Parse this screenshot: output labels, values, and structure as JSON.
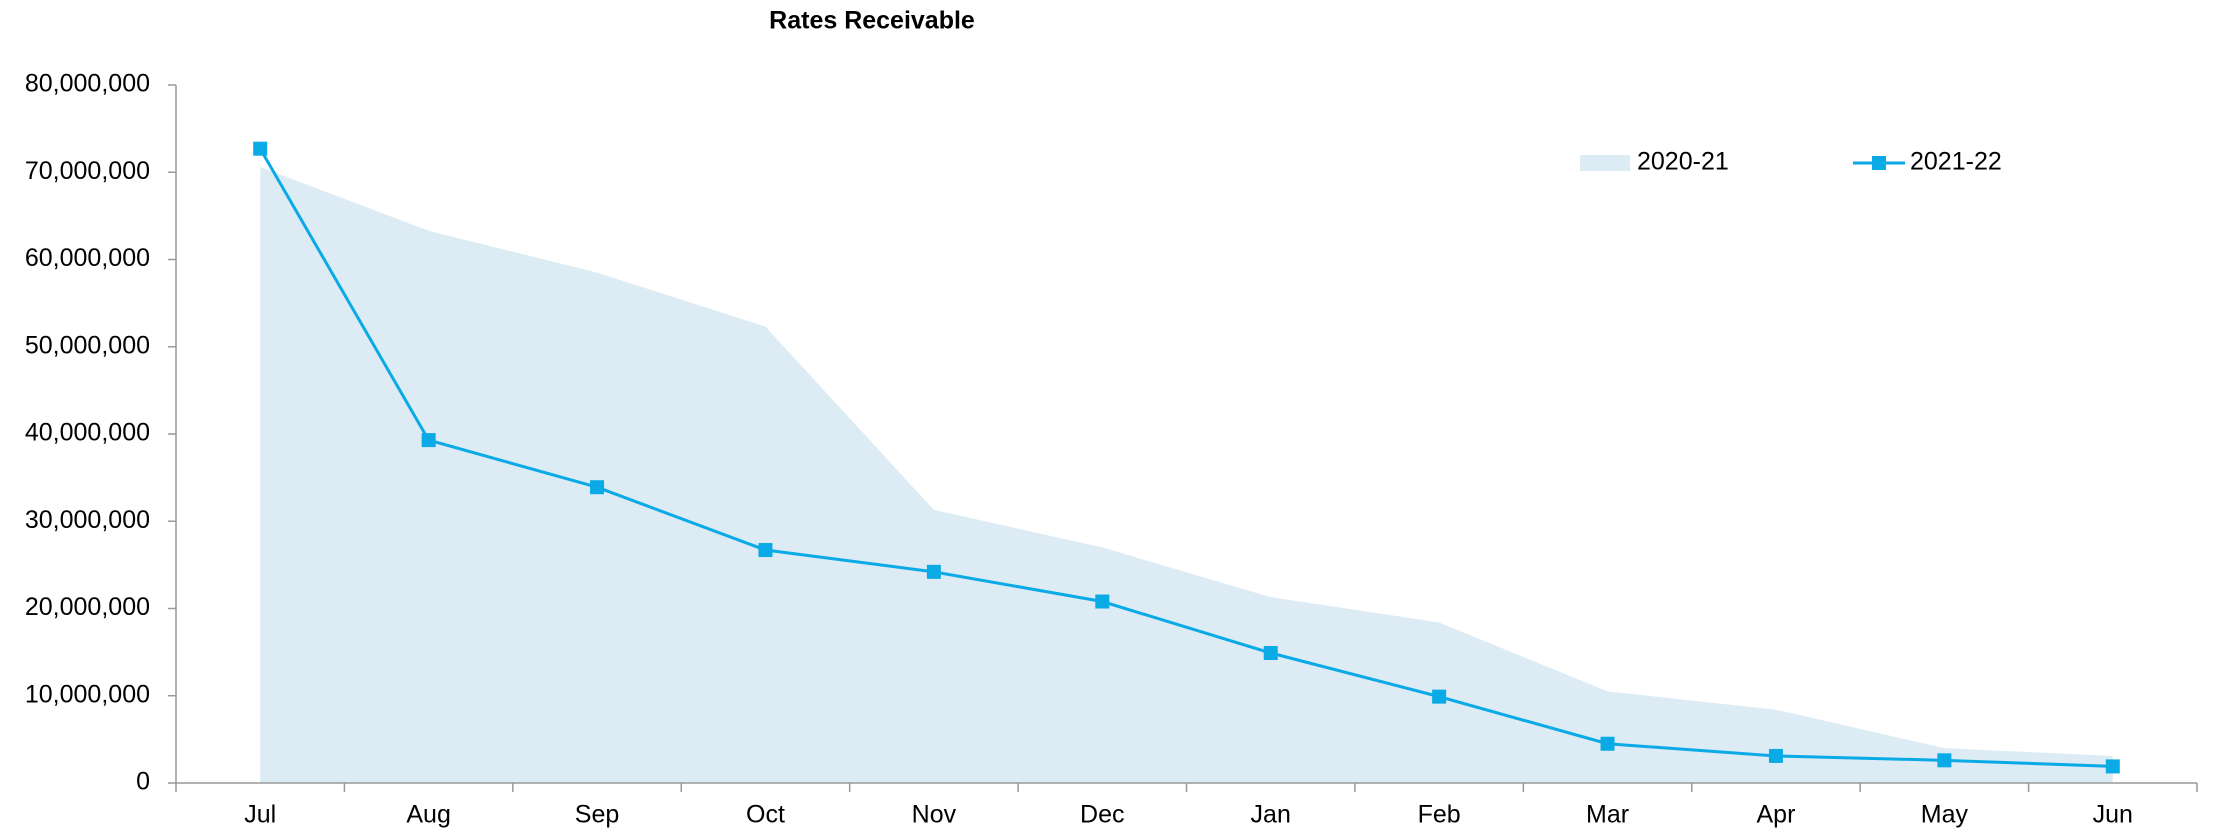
{
  "chart_data": {
    "type": "line",
    "title": "Rates Receivable",
    "categories": [
      "Jul",
      "Aug",
      "Sep",
      "Oct",
      "Nov",
      "Dec",
      "Jan",
      "Feb",
      "Mar",
      "Apr",
      "May",
      "Jun"
    ],
    "series": [
      {
        "name": "2020-21",
        "type": "area",
        "color": "#ddebf5",
        "values": [
          70600000,
          63300000,
          58500000,
          52300000,
          31300000,
          27000000,
          21300000,
          18400000,
          10500000,
          8400000,
          4000000,
          3100000
        ]
      },
      {
        "name": "2021-22",
        "type": "line",
        "color": "#0aaae6",
        "values": [
          72700000,
          39300000,
          33900000,
          26700000,
          24200000,
          20800000,
          14900000,
          9900000,
          4500000,
          3100000,
          2600000,
          1900000
        ]
      }
    ],
    "ylim": [
      0,
      80000000
    ],
    "yticks": [
      0,
      {
        "value": 10000000,
        "label": "10,000,000"
      },
      {
        "value": 20000000,
        "label": "20,000,000"
      },
      {
        "value": 30000000,
        "label": "30,000,000"
      },
      {
        "value": 40000000,
        "label": "40,000,000"
      },
      {
        "value": 50000000,
        "label": "50,000,000"
      },
      {
        "value": 60000000,
        "label": "60,000,000"
      },
      {
        "value": 70000000,
        "label": "70,000,000"
      },
      {
        "value": 80000000,
        "label": "80,000,000"
      }
    ],
    "grid": false,
    "legend": "upper right"
  }
}
